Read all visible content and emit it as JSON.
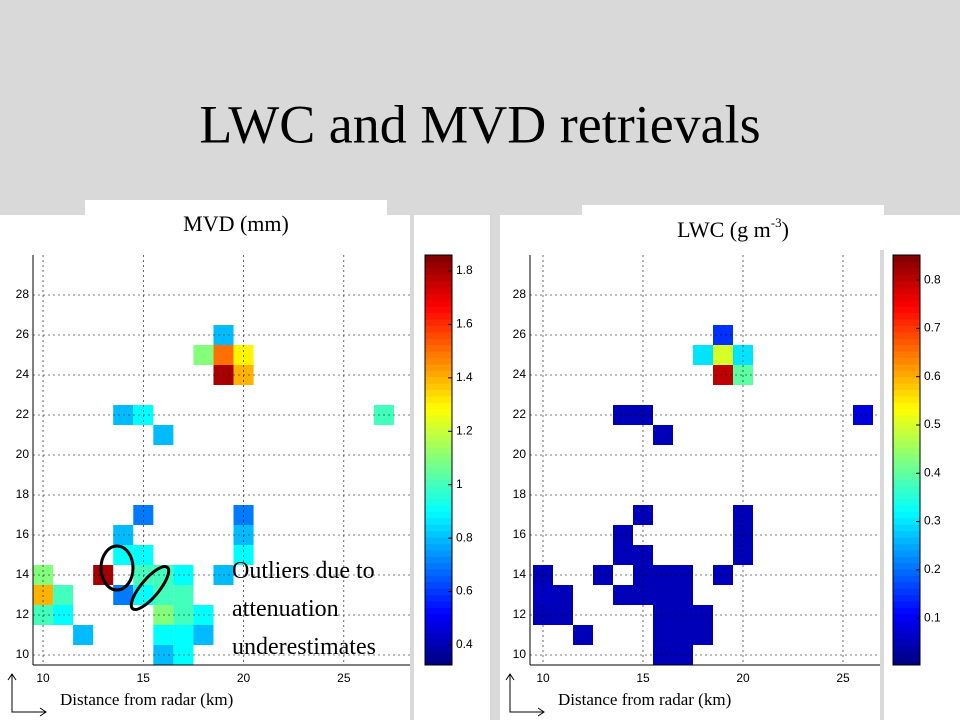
{
  "title": "LWC and MVD retrievals",
  "annotation": [
    "Outliers due to",
    "attenuation",
    "underestimates"
  ],
  "chart_data": [
    {
      "type": "heatmap",
      "label_parts": [
        "MVD (mm)"
      ],
      "x_label": "Distance from radar (km)",
      "xlim": [
        9.5,
        28.3
      ],
      "ylim": [
        9.5,
        30
      ],
      "xticks": [
        10,
        15,
        20,
        25
      ],
      "yticks": [
        10,
        12,
        14,
        16,
        18,
        20,
        22,
        24,
        26,
        28
      ],
      "clim": [
        0.325,
        1.86
      ],
      "cticks": [
        0.4,
        0.6,
        0.8,
        1,
        1.2,
        1.4,
        1.6,
        1.8
      ],
      "colormap": "jet",
      "grid": true,
      "cells": [
        [
          19,
          25,
          1.5
        ],
        [
          20,
          25,
          1.3
        ],
        [
          19,
          24,
          1.8
        ],
        [
          20,
          24,
          1.4
        ],
        [
          18,
          25,
          1.1
        ],
        [
          19,
          26,
          0.8
        ],
        [
          14,
          22,
          0.8
        ],
        [
          15,
          22,
          0.9
        ],
        [
          16,
          21,
          0.8
        ],
        [
          27,
          22,
          1.0
        ],
        [
          10,
          13,
          1.4
        ],
        [
          10,
          14,
          1.1
        ],
        [
          11,
          12,
          0.9
        ],
        [
          10,
          12,
          1.0
        ],
        [
          11,
          13,
          1.0
        ],
        [
          13,
          14,
          1.8
        ],
        [
          14,
          13,
          0.7
        ],
        [
          14,
          15,
          0.9
        ],
        [
          15,
          15,
          0.9
        ],
        [
          15,
          14,
          1.0
        ],
        [
          16,
          14,
          1.0
        ],
        [
          17,
          14,
          0.9
        ],
        [
          15,
          13,
          0.9
        ],
        [
          16,
          13,
          1.0
        ],
        [
          17,
          13,
          1.0
        ],
        [
          16,
          12,
          1.1
        ],
        [
          17,
          12,
          1.0
        ],
        [
          18,
          12,
          0.9
        ],
        [
          16,
          11,
          0.9
        ],
        [
          17,
          11,
          0.9
        ],
        [
          18,
          11,
          0.8
        ],
        [
          17,
          10,
          0.9
        ],
        [
          16,
          10,
          0.8
        ],
        [
          14,
          16,
          0.8
        ],
        [
          15,
          17,
          0.7
        ],
        [
          19,
          14,
          0.8
        ],
        [
          20,
          15,
          0.9
        ],
        [
          20,
          16,
          0.8
        ],
        [
          20,
          17,
          0.7
        ],
        [
          12,
          11,
          0.8
        ]
      ]
    },
    {
      "type": "heatmap",
      "label_parts": [
        "LWC (g m",
        "-3",
        ")"
      ],
      "x_label": "Distance from radar (km)",
      "xlim": [
        9.35,
        26.85
      ],
      "ylim": [
        9.5,
        30
      ],
      "xticks": [
        10,
        15,
        20,
        25
      ],
      "yticks": [
        10,
        12,
        14,
        16,
        18,
        20,
        22,
        24,
        26,
        28
      ],
      "clim": [
        0.003,
        0.852
      ],
      "cticks": [
        0.1,
        0.2,
        0.3,
        0.4,
        0.5,
        0.6,
        0.7,
        0.8
      ],
      "colormap": "jet",
      "grid": true,
      "cells": [
        [
          19,
          25,
          0.5
        ],
        [
          20,
          25,
          0.3
        ],
        [
          19,
          24,
          0.8
        ],
        [
          20,
          24,
          0.4
        ],
        [
          18,
          25,
          0.3
        ],
        [
          19,
          26,
          0.15
        ],
        [
          14,
          22,
          0.05
        ],
        [
          15,
          22,
          0.05
        ],
        [
          16,
          21,
          0.05
        ],
        [
          26,
          22,
          0.08
        ],
        [
          10,
          13,
          0.06
        ],
        [
          10,
          14,
          0.05
        ],
        [
          11,
          12,
          0.05
        ],
        [
          10,
          12,
          0.05
        ],
        [
          11,
          13,
          0.05
        ],
        [
          13,
          14,
          0.05
        ],
        [
          14,
          13,
          0.05
        ],
        [
          14,
          15,
          0.05
        ],
        [
          15,
          15,
          0.05
        ],
        [
          15,
          14,
          0.05
        ],
        [
          16,
          14,
          0.05
        ],
        [
          17,
          14,
          0.05
        ],
        [
          15,
          13,
          0.05
        ],
        [
          16,
          13,
          0.05
        ],
        [
          17,
          13,
          0.05
        ],
        [
          16,
          12,
          0.05
        ],
        [
          17,
          12,
          0.05
        ],
        [
          18,
          12,
          0.05
        ],
        [
          16,
          11,
          0.05
        ],
        [
          17,
          11,
          0.05
        ],
        [
          18,
          11,
          0.05
        ],
        [
          17,
          10,
          0.05
        ],
        [
          16,
          10,
          0.05
        ],
        [
          14,
          16,
          0.05
        ],
        [
          15,
          17,
          0.05
        ],
        [
          19,
          14,
          0.05
        ],
        [
          20,
          15,
          0.05
        ],
        [
          20,
          16,
          0.05
        ],
        [
          20,
          17,
          0.05
        ],
        [
          12,
          11,
          0.05
        ]
      ]
    }
  ]
}
